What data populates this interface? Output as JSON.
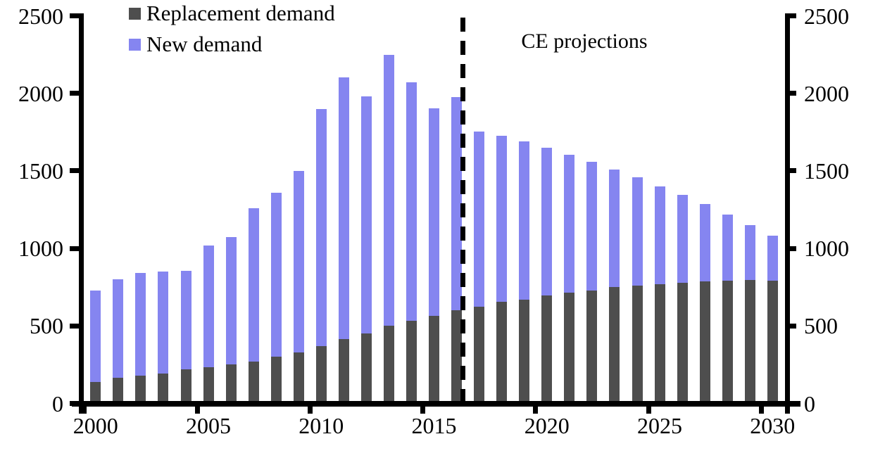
{
  "chart_data": {
    "type": "bar",
    "stacked": true,
    "title": "",
    "xlabel": "",
    "ylabel": "",
    "background": "#ffffff",
    "axis_color": "#000000",
    "grid": false,
    "categories": [
      2000,
      2001,
      2002,
      2003,
      2004,
      2005,
      2006,
      2007,
      2008,
      2009,
      2010,
      2011,
      2012,
      2013,
      2014,
      2015,
      2016,
      2017,
      2018,
      2019,
      2020,
      2021,
      2022,
      2023,
      2024,
      2025,
      2026,
      2027,
      2028,
      2029,
      2030
    ],
    "series": [
      {
        "name": "Replacement demand",
        "color": "#4e4e4e",
        "values": [
          140,
          165,
          180,
          195,
          220,
          235,
          250,
          270,
          300,
          330,
          370,
          415,
          450,
          500,
          535,
          565,
          600,
          625,
          655,
          670,
          695,
          715,
          730,
          750,
          760,
          770,
          780,
          785,
          790,
          795,
          790
        ]
      },
      {
        "name": "New demand",
        "color": "#8585f0",
        "values": [
          590,
          635,
          660,
          655,
          635,
          785,
          825,
          990,
          1060,
          1170,
          1530,
          1690,
          1530,
          1750,
          1535,
          1340,
          1375,
          1130,
          1070,
          1020,
          955,
          890,
          830,
          760,
          700,
          630,
          565,
          500,
          430,
          355,
          290
        ]
      }
    ],
    "ylim": [
      0,
      2500
    ],
    "y_ticks": [
      0,
      500,
      1000,
      1500,
      2000,
      2500
    ],
    "y_axis_sides": [
      "left",
      "right"
    ],
    "x_tick_labels": [
      2000,
      2005,
      2010,
      2015,
      2020,
      2025,
      2030
    ],
    "legend": {
      "position": "top-left",
      "items": [
        "Replacement demand",
        "New demand"
      ]
    },
    "annotation": {
      "label": "CE projections",
      "divider_after_year": 2016
    }
  }
}
